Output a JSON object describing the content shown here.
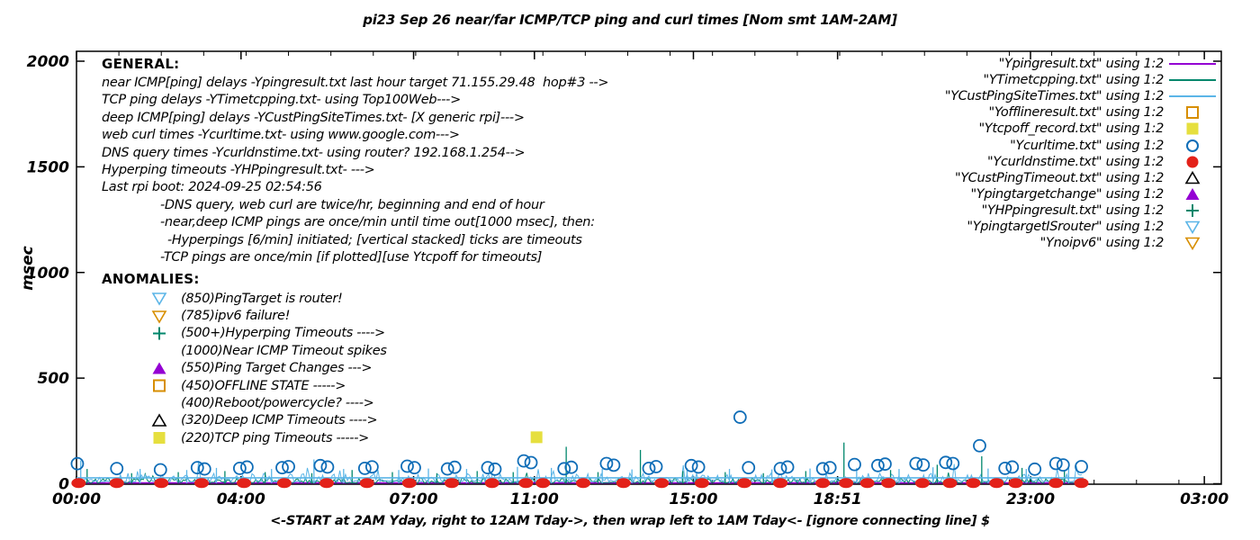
{
  "chart": {
    "title": "pi23 Sep 26  near/far ICMP/TCP ping and curl times [Nom smt 1AM-2AM]",
    "ylabel": "msec",
    "xlabel": "<-START at 2AM Yday, right to 12AM Tday->, then wrap left to 1AM Tday<- [ignore connecting line]  $"
  },
  "general": {
    "heading": "GENERAL:",
    "lines": [
      {
        "text": "near ICMP[ping] delays -Ypingresult.txt last hour target 71.155.29.48  hop#3 -->",
        "indent": 0
      },
      {
        "text": "TCP ping delays -YTimetcpping.txt- using Top100Web--->",
        "indent": 0
      },
      {
        "text": "deep ICMP[ping] delays -YCustPingSiteTimes.txt- [X generic rpi]--->",
        "indent": 0
      },
      {
        "text": "web curl times -Ycurltime.txt- using www.google.com--->",
        "indent": 0
      },
      {
        "text": "DNS query times -Ycurldnstime.txt- using router? 192.168.1.254-->",
        "indent": 0
      },
      {
        "text": "Hyperping timeouts -YHPpingresult.txt- --->",
        "indent": 0
      },
      {
        "text": "Last rpi boot: 2024-09-25 02:54:56",
        "indent": 0
      },
      {
        "text": "-DNS query, web curl are twice/hr, beginning and end of hour",
        "indent": 65
      },
      {
        "text": "-near,deep ICMP pings are once/min until time out[1000 msec], then:",
        "indent": 65
      },
      {
        "text": "-Hyperpings [6/min] initiated; [vertical stacked] ticks are timeouts",
        "indent": 73
      },
      {
        "text": "-TCP pings are once/min [if plotted][use Ytcpoff for timeouts]",
        "indent": 65
      }
    ]
  },
  "anomalies": {
    "heading": "ANOMALIES:",
    "items": [
      {
        "marker": "tri-down-open",
        "color": "#5bb5e7",
        "label": "(850)PingTarget is router!"
      },
      {
        "marker": "tri-down-open",
        "color": "#d78e00",
        "label": "(785)ipv6 failure!"
      },
      {
        "marker": "plus",
        "color": "#00876c",
        "label": "(500+)Hyperping Timeouts ---->"
      },
      {
        "marker": null,
        "color": null,
        "label": "(1000)Near ICMP Timeout spikes"
      },
      {
        "marker": "tri-up-fill",
        "color": "#9400d3",
        "label": "(550)Ping Target Changes --->"
      },
      {
        "marker": "square-open",
        "color": "#d78e00",
        "label": "(450)OFFLINE STATE ----->"
      },
      {
        "marker": null,
        "color": null,
        "label": "(400)Reboot/powercycle? ---->"
      },
      {
        "marker": "tri-up-open",
        "color": "#000000",
        "label": "(320)Deep ICMP Timeouts ---->"
      },
      {
        "marker": "square-fill",
        "color": "#e6df3e",
        "label": "(220)TCP ping Timeouts ----->"
      }
    ]
  },
  "legend": {
    "items": [
      {
        "label": "\"Ypingresult.txt\" using 1:2",
        "marker": "line",
        "color": "#9400d3"
      },
      {
        "label": "\"YTimetcpping.txt\" using 1:2",
        "marker": "line",
        "color": "#00876c"
      },
      {
        "label": "\"YCustPingSiteTimes.txt\" using 1:2",
        "marker": "line",
        "color": "#5bb5e7"
      },
      {
        "label": "\"Yofflineresult.txt\" using 1:2",
        "marker": "square-open",
        "color": "#d78e00"
      },
      {
        "label": "\"Ytcpoff_record.txt\" using 1:2",
        "marker": "square-fill",
        "color": "#e6df3e"
      },
      {
        "label": "\"Ycurltime.txt\" using 1:2",
        "marker": "circle-open",
        "color": "#0f6db7"
      },
      {
        "label": "\"Ycurldnstime.txt\" using 1:2",
        "marker": "circle-fill",
        "color": "#e32119"
      },
      {
        "label": "\"YCustPingTimeout.txt\" using 1:2",
        "marker": "tri-up-open",
        "color": "#000000"
      },
      {
        "label": "\"Ypingtargetchange\" using 1:2",
        "marker": "tri-up-fill",
        "color": "#9400d3"
      },
      {
        "label": "\"YHPpingresult.txt\" using 1:2",
        "marker": "plus",
        "color": "#00876c"
      },
      {
        "label": "\"YpingtargetISrouter\" using 1:2",
        "marker": "tri-down-open",
        "color": "#5bb5e7"
      },
      {
        "label": "\"Ynoipv6\" using 1:2",
        "marker": "tri-down-open",
        "color": "#d78e00"
      }
    ]
  },
  "chart_data": {
    "type": "line+scatter",
    "title": "pi23 Sep 26  near/far ICMP/TCP ping and curl times [Nom smt 1AM-2AM]",
    "xlabel": "<-START at 2AM Yday, right to 12AM Tday->, then wrap left to 1AM Tday<- [ignore connecting line]  $",
    "ylabel": "msec",
    "grid": false,
    "legend_position": "top-right",
    "x_axis": {
      "unit": "time (HH:MM)",
      "range_hours": [
        0,
        27
      ],
      "minor_tick_every_hours": 1,
      "major_ticks": [
        {
          "hour": 0.0,
          "label": "00:00"
        },
        {
          "hour": 3.88,
          "label": "04:00"
        },
        {
          "hour": 7.95,
          "label": "07:00"
        },
        {
          "hour": 10.8,
          "label": "11:00"
        },
        {
          "hour": 14.55,
          "label": "15:00"
        },
        {
          "hour": 17.95,
          "label": "18:51"
        },
        {
          "hour": 22.5,
          "label": "23:00"
        },
        {
          "hour": 26.6,
          "label": "03:00"
        }
      ]
    },
    "y_axis": {
      "unit": "msec",
      "range": [
        0,
        2000
      ],
      "ticks": [
        0,
        500,
        1000,
        1500,
        2000
      ]
    },
    "series": [
      {
        "name": "Ypingresult.txt",
        "style": "line-flat",
        "color": "#9400d3",
        "value_msec": 4,
        "from_hour": 0,
        "to_hour": 23.75
      },
      {
        "name": "YTimetcpping.txt",
        "style": "noise-line",
        "color": "#00876c",
        "base_msec": 4,
        "noise_amp_msec": 24,
        "from_hour": 0,
        "to_hour": 23.75,
        "seed": 7,
        "spikes": [
          [
            0.25,
            70
          ],
          [
            1.3,
            50
          ],
          [
            2.4,
            55
          ],
          [
            3.5,
            60
          ],
          [
            4.45,
            55
          ],
          [
            5.55,
            50
          ],
          [
            6.5,
            65
          ],
          [
            7.45,
            55
          ],
          [
            8.5,
            50
          ],
          [
            9.45,
            60
          ],
          [
            10.3,
            55
          ],
          [
            11.55,
            175
          ],
          [
            12.3,
            55
          ],
          [
            13.3,
            160
          ],
          [
            14.3,
            60
          ],
          [
            15.3,
            55
          ],
          [
            16.2,
            50
          ],
          [
            17.2,
            60
          ],
          [
            18.1,
            195
          ],
          [
            19.2,
            65
          ],
          [
            20.3,
            90
          ],
          [
            21.35,
            130
          ],
          [
            22.3,
            75
          ],
          [
            23.3,
            65
          ]
        ]
      },
      {
        "name": "YCustPingSiteTimes.txt",
        "style": "noise-line",
        "color": "#5bb5e7",
        "base_msec": 10,
        "noise_amp_msec": 40,
        "from_hour": 0,
        "to_hour": 23.75,
        "seed": 13,
        "flat_line_msec": 28,
        "spikes": [
          [
            0.1,
            110
          ],
          [
            1.5,
            70
          ],
          [
            2.6,
            65
          ],
          [
            3.3,
            75
          ],
          [
            4.6,
            70
          ],
          [
            5.6,
            115
          ],
          [
            6.3,
            70
          ],
          [
            7.6,
            65
          ],
          [
            8.3,
            72
          ],
          [
            9.2,
            70
          ],
          [
            10.4,
            80
          ],
          [
            11.2,
            75
          ],
          [
            12.4,
            70
          ],
          [
            13.1,
            68
          ],
          [
            14.4,
            75
          ],
          [
            15.4,
            70
          ],
          [
            16.4,
            68
          ],
          [
            17.3,
            72
          ],
          [
            18.4,
            75
          ],
          [
            19.4,
            70
          ],
          [
            20.2,
            78
          ],
          [
            21.5,
            72
          ],
          [
            22.4,
            70
          ],
          [
            23.4,
            75
          ]
        ]
      },
      {
        "name": "Yofflineresult.txt",
        "style": "points",
        "marker": "square-open",
        "color": "#d78e00",
        "points": []
      },
      {
        "name": "Ytcpoff_record.txt",
        "style": "points",
        "marker": "square-fill",
        "color": "#e6df3e",
        "points": [
          [
            10.85,
            220
          ]
        ]
      },
      {
        "name": "Ycurltime.txt",
        "style": "points",
        "marker": "circle-open",
        "color": "#0f6db7",
        "points": [
          [
            0.02,
            95
          ],
          [
            0.95,
            72
          ],
          [
            1.98,
            66
          ],
          [
            2.85,
            76
          ],
          [
            3.02,
            70
          ],
          [
            3.85,
            73
          ],
          [
            4.02,
            79
          ],
          [
            4.85,
            76
          ],
          [
            5.0,
            81
          ],
          [
            5.75,
            86
          ],
          [
            5.92,
            79
          ],
          [
            6.8,
            73
          ],
          [
            6.97,
            80
          ],
          [
            7.8,
            83
          ],
          [
            7.97,
            76
          ],
          [
            8.75,
            70
          ],
          [
            8.92,
            78
          ],
          [
            9.7,
            76
          ],
          [
            9.87,
            69
          ],
          [
            10.55,
            108
          ],
          [
            10.72,
            100
          ],
          [
            11.5,
            71
          ],
          [
            11.67,
            78
          ],
          [
            12.5,
            96
          ],
          [
            12.67,
            88
          ],
          [
            13.5,
            73
          ],
          [
            13.67,
            81
          ],
          [
            14.5,
            86
          ],
          [
            14.67,
            79
          ],
          [
            15.65,
            315
          ],
          [
            15.85,
            76
          ],
          [
            16.6,
            72
          ],
          [
            16.77,
            79
          ],
          [
            17.6,
            71
          ],
          [
            17.77,
            76
          ],
          [
            18.35,
            91
          ],
          [
            18.9,
            86
          ],
          [
            19.07,
            93
          ],
          [
            19.8,
            96
          ],
          [
            19.97,
            89
          ],
          [
            20.5,
            101
          ],
          [
            20.67,
            96
          ],
          [
            21.3,
            180
          ],
          [
            21.9,
            73
          ],
          [
            22.07,
            79
          ],
          [
            22.6,
            69
          ],
          [
            23.1,
            96
          ],
          [
            23.27,
            89
          ],
          [
            23.7,
            81
          ]
        ]
      },
      {
        "name": "Ycurldnstime.txt",
        "style": "points",
        "marker": "circle-fill",
        "color": "#e32119",
        "points": [
          [
            0.05,
            3
          ],
          [
            0.95,
            3
          ],
          [
            2.0,
            3
          ],
          [
            2.95,
            3
          ],
          [
            3.95,
            3
          ],
          [
            4.9,
            3
          ],
          [
            5.9,
            3
          ],
          [
            6.85,
            3
          ],
          [
            7.85,
            3
          ],
          [
            8.85,
            3
          ],
          [
            9.8,
            3
          ],
          [
            10.6,
            3
          ],
          [
            11.0,
            3
          ],
          [
            11.95,
            3
          ],
          [
            12.9,
            3
          ],
          [
            13.8,
            3
          ],
          [
            14.75,
            3
          ],
          [
            15.75,
            3
          ],
          [
            16.6,
            3
          ],
          [
            17.6,
            3
          ],
          [
            18.15,
            3
          ],
          [
            18.65,
            3
          ],
          [
            19.15,
            3
          ],
          [
            19.95,
            3
          ],
          [
            20.6,
            3
          ],
          [
            21.15,
            3
          ],
          [
            21.7,
            3
          ],
          [
            22.15,
            3
          ],
          [
            23.1,
            3
          ],
          [
            23.7,
            3
          ]
        ]
      },
      {
        "name": "YCustPingTimeout.txt",
        "style": "points",
        "marker": "tri-up-open",
        "color": "#000000",
        "points": []
      },
      {
        "name": "Ypingtargetchange",
        "style": "points",
        "marker": "tri-up-fill",
        "color": "#9400d3",
        "points": []
      },
      {
        "name": "YHPpingresult.txt",
        "style": "points",
        "marker": "plus",
        "color": "#00876c",
        "points": []
      },
      {
        "name": "YpingtargetISrouter",
        "style": "points",
        "marker": "tri-down-open",
        "color": "#5bb5e7",
        "points": []
      },
      {
        "name": "Ynoipv6",
        "style": "points",
        "marker": "tri-down-open",
        "color": "#d78e00",
        "points": []
      }
    ]
  }
}
